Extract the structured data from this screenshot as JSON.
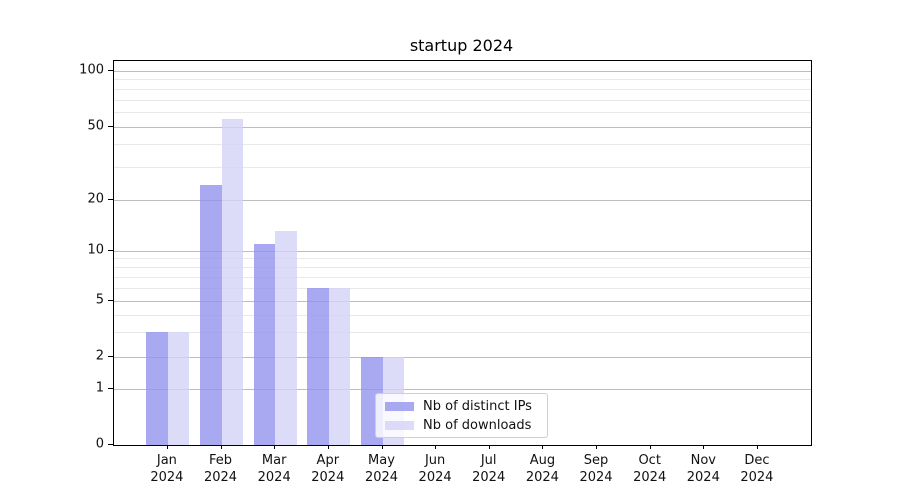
{
  "figure": {
    "title": "startup 2024"
  },
  "chart_data": {
    "type": "bar",
    "title": "startup 2024",
    "categories": [
      "Jan",
      "Feb",
      "Mar",
      "Apr",
      "May",
      "Jun",
      "Jul",
      "Aug",
      "Sep",
      "Oct",
      "Nov",
      "Dec"
    ],
    "category_year": "2024",
    "series": [
      {
        "name": "Nb of distinct IPs",
        "color": "rgba(148,148,238,0.8)",
        "values": [
          3,
          24,
          11,
          6,
          2,
          0,
          0,
          0,
          0,
          0,
          0,
          0
        ]
      },
      {
        "name": "Nb of downloads",
        "color": "rgba(211,211,247,0.8)",
        "values": [
          3,
          55,
          13,
          6,
          2,
          0,
          0,
          0,
          0,
          0,
          0,
          0
        ]
      }
    ],
    "xlabel": "",
    "ylabel": "",
    "y_axis": {
      "scale": "symlog-like",
      "range": [
        0,
        100
      ],
      "ticks": [
        0,
        1,
        2,
        5,
        10,
        20,
        50,
        100
      ],
      "minor_ticks": [
        3,
        4,
        6,
        7,
        8,
        9,
        30,
        40,
        60,
        70,
        80,
        90
      ],
      "tick_fractions": {
        "0": 0.0,
        "1": 0.1458,
        "2": 0.2292,
        "5": 0.375,
        "10": 0.5065,
        "20": 0.6393,
        "50": 0.8294,
        "100": 0.974
      }
    },
    "grid": true,
    "legend_position": "inside-bottom-center"
  },
  "colors": {
    "grid_major": "#bdbdbd",
    "grid_minor": "#e9e9e9",
    "spine": "#000000",
    "background": "#ffffff",
    "bar_distinct_ips": "rgba(148,148,238,0.8)",
    "bar_downloads": "rgba(211,211,247,0.8)"
  }
}
